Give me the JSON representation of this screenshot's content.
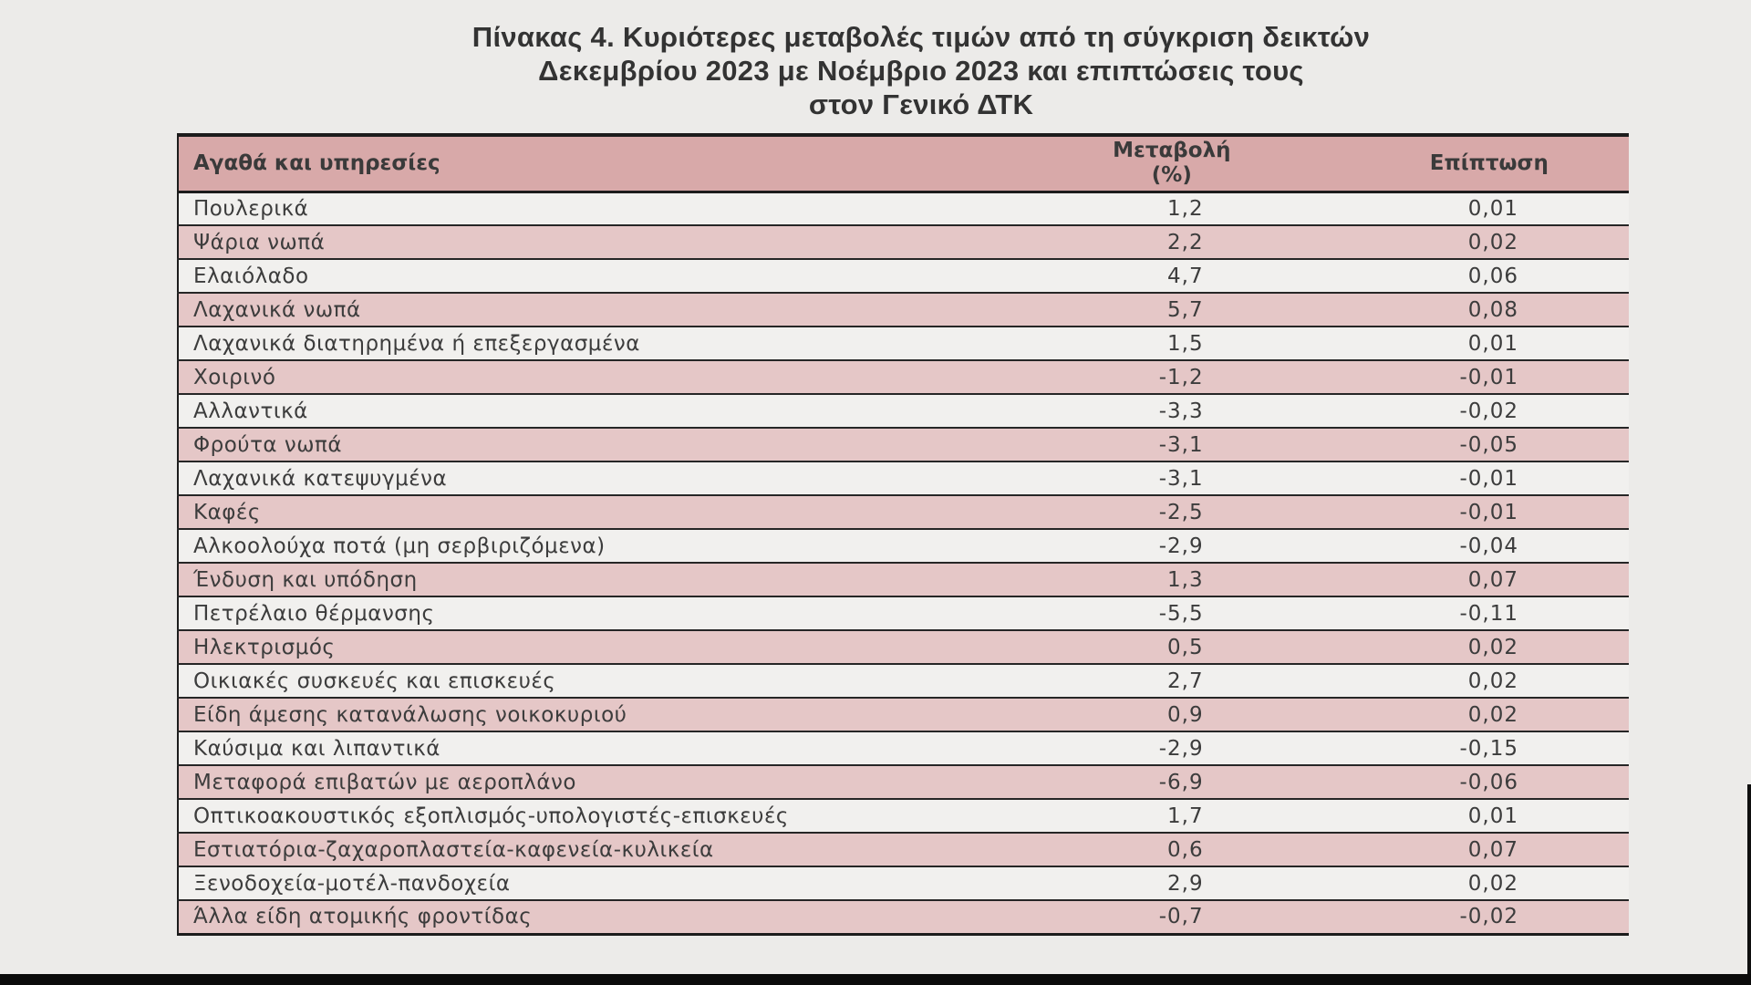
{
  "title": {
    "line1": "Πίνακας  4. Κυριότερες μεταβολές τιμών από τη σύγκριση δεικτών",
    "line2": "Δεκεμβρίου 2023 με Νοέμβριο 2023 και επιπτώσεις τους",
    "line3": "στον Γενικό ΔΤΚ"
  },
  "table": {
    "header": {
      "goods": "Αγαθά και υπηρεσίες",
      "change_line1": "Μεταβολή",
      "change_line2": "(%)",
      "impact": "Επίπτωση"
    },
    "rows": [
      {
        "label": "Πουλερικά",
        "change": "1,2",
        "impact": "0,01"
      },
      {
        "label": "Ψάρια νωπά",
        "change": "2,2",
        "impact": "0,02"
      },
      {
        "label": "Ελαιόλαδο",
        "change": "4,7",
        "impact": "0,06"
      },
      {
        "label": "Λαχανικά νωπά",
        "change": "5,7",
        "impact": "0,08"
      },
      {
        "label": "Λαχανικά διατηρημένα ή επεξεργασμένα",
        "change": "1,5",
        "impact": "0,01"
      },
      {
        "label": "Χοιρινό",
        "change": "-1,2",
        "impact": "-0,01"
      },
      {
        "label": "Αλλαντικά",
        "change": "-3,3",
        "impact": "-0,02"
      },
      {
        "label": "Φρούτα νωπά",
        "change": "-3,1",
        "impact": "-0,05"
      },
      {
        "label": "Λαχανικά κατεψυγμένα",
        "change": "-3,1",
        "impact": "-0,01"
      },
      {
        "label": "Καφές",
        "change": "-2,5",
        "impact": "-0,01"
      },
      {
        "label": "Αλκοολούχα ποτά (μη σερβιριζόμενα)",
        "change": "-2,9",
        "impact": "-0,04"
      },
      {
        "label": "Ένδυση και υπόδηση",
        "change": "1,3",
        "impact": "0,07"
      },
      {
        "label": "Πετρέλαιο θέρμανσης",
        "change": "-5,5",
        "impact": "-0,11"
      },
      {
        "label": "Ηλεκτρισμός",
        "change": "0,5",
        "impact": "0,02"
      },
      {
        "label": "Οικιακές συσκευές και επισκευές",
        "change": "2,7",
        "impact": "0,02"
      },
      {
        "label": "Είδη άμεσης κατανάλωσης νοικοκυριού",
        "change": "0,9",
        "impact": "0,02"
      },
      {
        "label": "Καύσιμα και λιπαντικά",
        "change": "-2,9",
        "impact": "-0,15"
      },
      {
        "label": "Μεταφορά επιβατών με αεροπλάνο",
        "change": "-6,9",
        "impact": "-0,06"
      },
      {
        "label": "Οπτικοακουστικός εξοπλισμός-υπολογιστές-επισκευές",
        "change": "1,7",
        "impact": "0,01"
      },
      {
        "label": "Εστιατόρια-ζαχαροπλαστεία-καφενεία-κυλικεία",
        "change": "0,6",
        "impact": "0,07"
      },
      {
        "label": "Ξενοδοχεία-μοτέλ-πανδοχεία",
        "change": "2,9",
        "impact": "0,02"
      },
      {
        "label": "Άλλα είδη ατομικής φροντίδας",
        "change": "-0,7",
        "impact": "-0,02"
      }
    ]
  },
  "colors": {
    "background": "#ecebe9",
    "header_pink": "#d8a9a9",
    "row_pink": "#e5c7c7",
    "row_light": "#f1f0ee",
    "border": "#1c1c1c",
    "text": "#3c3c3c",
    "bottom_bar": "#0b0b0b"
  }
}
